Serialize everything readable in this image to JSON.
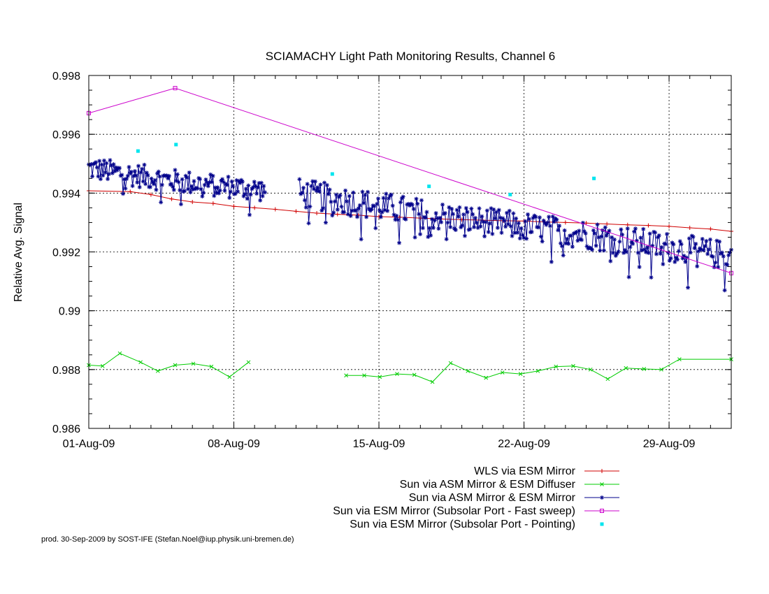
{
  "chart_data": {
    "type": "line",
    "title": "SCIAMACHY Light Path Monitoring Results, Channel 6",
    "xlabel": "",
    "ylabel": "Relative Avg. Signal",
    "xlim": [
      "2009-08-01",
      "2009-09-01"
    ],
    "ylim": [
      0.986,
      0.998
    ],
    "x_ticks": [
      "01-Aug-09",
      "08-Aug-09",
      "15-Aug-09",
      "22-Aug-09",
      "29-Aug-09"
    ],
    "x_tick_dates": [
      "2009-08-01",
      "2009-08-08",
      "2009-08-15",
      "2009-08-22",
      "2009-08-29"
    ],
    "y_ticks": [
      "0.998",
      "0.996",
      "0.994",
      "0.992",
      "0.99",
      "0.988",
      "0.986"
    ],
    "y_tick_values": [
      0.998,
      0.996,
      0.994,
      0.992,
      0.99,
      0.988,
      0.986
    ],
    "grid": true,
    "legend_position": "bottom-right",
    "series": [
      {
        "name": "WLS via ESM Mirror",
        "style": "line-points",
        "marker": "+",
        "color": "#d00000",
        "points": [
          [
            "2009-08-01",
            0.99408
          ],
          [
            "2009-08-03",
            0.99405
          ],
          [
            "2009-08-04",
            0.99395
          ],
          [
            "2009-08-05",
            0.9938
          ],
          [
            "2009-08-06",
            0.9937
          ],
          [
            "2009-08-07",
            0.99365
          ],
          [
            "2009-08-08",
            0.99355
          ],
          [
            "2009-08-09",
            0.9935
          ],
          [
            "2009-08-10",
            0.99345
          ],
          [
            "2009-08-11",
            0.99338
          ],
          [
            "2009-08-12",
            0.99332
          ],
          [
            "2009-08-13",
            0.99328
          ],
          [
            "2009-08-14",
            0.99325
          ],
          [
            "2009-08-15",
            0.9932
          ],
          [
            "2009-08-16",
            0.99318
          ],
          [
            "2009-08-17",
            0.99315
          ],
          [
            "2009-08-18",
            0.99312
          ],
          [
            "2009-08-19",
            0.9931
          ],
          [
            "2009-08-20",
            0.99308
          ],
          [
            "2009-08-21",
            0.99306
          ],
          [
            "2009-08-22",
            0.99305
          ],
          [
            "2009-08-23",
            0.99302
          ],
          [
            "2009-08-24",
            0.993
          ],
          [
            "2009-08-25",
            0.99298
          ],
          [
            "2009-08-26",
            0.99295
          ],
          [
            "2009-08-27",
            0.99292
          ],
          [
            "2009-08-28",
            0.9929
          ],
          [
            "2009-08-29",
            0.99287
          ],
          [
            "2009-08-30",
            0.99282
          ],
          [
            "2009-08-31",
            0.99278
          ],
          [
            "2009-09-01",
            0.9927
          ]
        ]
      },
      {
        "name": "Sun via ASM Mirror & ESM Diffuser",
        "style": "line-points",
        "marker": "x",
        "color": "#00cc00",
        "points": [
          [
            "2009-08-01",
            0.98815
          ],
          [
            "2009-08-01T16:00",
            0.98812
          ],
          [
            "2009-08-02T12:00",
            0.98855
          ],
          [
            "2009-08-03T12:00",
            0.98825
          ],
          [
            "2009-08-04T08:00",
            0.98795
          ],
          [
            "2009-08-05T04:00",
            0.98815
          ],
          [
            "2009-08-06T01:00",
            0.9882
          ],
          [
            "2009-08-06T22:00",
            0.9881
          ],
          [
            "2009-08-07T19:00",
            0.98775
          ],
          [
            "2009-08-08T17:00",
            0.98825
          ],
          null,
          [
            "2009-08-13T10:00",
            0.9878
          ],
          [
            "2009-08-14T07:00",
            0.9878
          ],
          [
            "2009-08-15T01:00",
            0.98775
          ],
          [
            "2009-08-15T21:00",
            0.98785
          ],
          [
            "2009-08-16T17:00",
            0.98782
          ],
          [
            "2009-08-17T14:00",
            0.98758
          ],
          [
            "2009-08-18T11:00",
            0.98822
          ],
          [
            "2009-08-19T07:00",
            0.98795
          ],
          [
            "2009-08-20T04:00",
            0.98772
          ],
          [
            "2009-08-20T23:00",
            0.9879
          ],
          [
            "2009-08-21T20:00",
            0.98785
          ],
          [
            "2009-08-22T16:00",
            0.98795
          ],
          [
            "2009-08-23T13:00",
            0.9881
          ],
          [
            "2009-08-24T09:00",
            0.98812
          ],
          [
            "2009-08-25T05:00",
            0.988
          ],
          [
            "2009-08-26T01:00",
            0.98768
          ],
          [
            "2009-08-26T22:00",
            0.98805
          ],
          [
            "2009-08-27T19:00",
            0.98802
          ],
          [
            "2009-08-28T15:00",
            0.988
          ],
          [
            "2009-08-29T12:00",
            0.98835
          ],
          [
            "2009-09-01",
            0.98835
          ]
        ]
      },
      {
        "name": "Sun via ASM Mirror & ESM Mirror",
        "style": "line-points",
        "marker": "*",
        "color": "#00008b",
        "segments": [
          {
            "start": "2009-08-01",
            "end": "2009-08-09T12:00",
            "trend": [
              [
                0,
                0.99485
              ],
              [
                0.5,
                0.9944
              ],
              [
                1,
                0.9941
              ]
            ],
            "noise": 0.0004,
            "count": 150
          },
          {
            "start": "2009-08-11T04:00",
            "end": "2009-09-01",
            "trend": [
              [
                0,
                0.994
              ],
              [
                0.33,
                0.9932
              ],
              [
                0.66,
                0.9926
              ],
              [
                1,
                0.99185
              ]
            ],
            "noise": 0.0005,
            "count": 330
          }
        ]
      },
      {
        "name": "Sun via ESM Mirror (Subsolar Port - Fast sweep)",
        "style": "line-points",
        "marker": "square",
        "color": "#cc00cc",
        "points": [
          [
            "2009-08-01",
            0.99672
          ],
          [
            "2009-08-05T04:00",
            0.99757
          ],
          [
            "2009-09-01",
            0.99128
          ]
        ]
      },
      {
        "name": "Sun via ESM Mirror (Subsolar Port - Pointing)",
        "style": "points",
        "marker": "filled-square",
        "color": "#00e5ee",
        "points": [
          [
            "2009-08-03T09:00",
            0.99543
          ],
          [
            "2009-08-05T05:00",
            0.99565
          ],
          [
            "2009-08-12T18:00",
            0.99465
          ],
          [
            "2009-08-17T10:00",
            0.99423
          ],
          [
            "2009-08-21T08:00",
            0.99395
          ],
          [
            "2009-08-25T09:00",
            0.9945
          ]
        ]
      }
    ],
    "footnote": "prod. 30-Sep-2009 by SOST-IFE (Stefan.Noel@iup.physik.uni-bremen.de)"
  }
}
